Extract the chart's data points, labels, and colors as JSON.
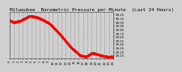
{
  "title": "Milwaukee  Barometric Pressure per Minute  (Last 24 Hours)",
  "bg_color": "#d0d0d0",
  "plot_bg_color": "#d0d0d0",
  "line_color": "#ff0000",
  "grid_color": "#888888",
  "ylim": [
    29.08,
    30.32
  ],
  "xlim": [
    0,
    1440
  ],
  "num_points": 1440,
  "title_fontsize": 4.2,
  "tick_fontsize": 2.8,
  "marker_size": 0.7,
  "y_ticks": [
    29.15,
    29.25,
    29.35,
    29.45,
    29.55,
    29.65,
    29.75,
    29.85,
    29.95,
    30.05,
    30.15,
    30.25
  ],
  "x_tick_positions": [
    0,
    60,
    120,
    180,
    240,
    300,
    360,
    420,
    480,
    540,
    600,
    660,
    720,
    780,
    840,
    900,
    960,
    1020,
    1080,
    1140,
    1200,
    1260,
    1320,
    1380,
    1440
  ],
  "x_tick_labels": [
    "0",
    "1",
    "2",
    "3",
    "4",
    "5",
    "6",
    "7",
    "8",
    "9",
    "10",
    "11",
    "12",
    "13",
    "14",
    "15",
    "16",
    "17",
    "18",
    "19",
    "20",
    "21",
    "22",
    "23",
    "24"
  ]
}
